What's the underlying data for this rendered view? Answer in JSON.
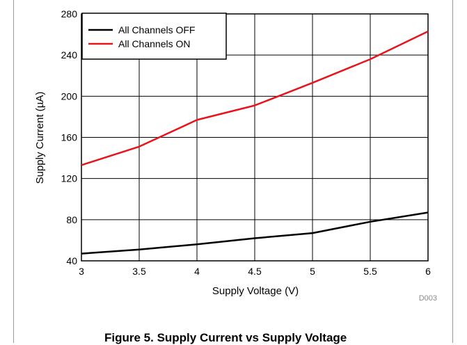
{
  "chart_data": {
    "type": "line",
    "title": "",
    "xlabel": "Supply Voltage (V)",
    "ylabel": "Supply Current (µA)",
    "xlim": [
      3,
      6
    ],
    "ylim": [
      40,
      280
    ],
    "x_ticks": [
      "3",
      "3.5",
      "4",
      "4.5",
      "5",
      "5.5",
      "6"
    ],
    "y_ticks": [
      "40",
      "80",
      "120",
      "160",
      "200",
      "240",
      "280"
    ],
    "grid": true,
    "legend_position": "top-left",
    "series": [
      {
        "name": "All Channels OFF",
        "color": "#000000",
        "x": [
          3,
          3.5,
          4,
          4.5,
          5,
          5.5,
          6
        ],
        "y": [
          47,
          51,
          56,
          62,
          67,
          78,
          87
        ]
      },
      {
        "name": "All Channels ON",
        "color": "#e8141b",
        "x": [
          3,
          3.5,
          4,
          4.5,
          5,
          5.5,
          6
        ],
        "y": [
          133,
          151,
          177,
          191,
          213,
          236,
          263
        ]
      }
    ],
    "annotation": "D003"
  },
  "caption": "Figure 5. Supply Current vs Supply Voltage"
}
